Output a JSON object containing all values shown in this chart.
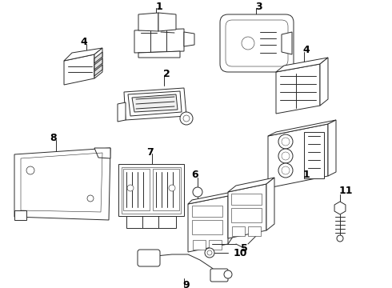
{
  "bg_color": "#ffffff",
  "line_color": "#2a2a2a",
  "figsize": [
    4.9,
    3.6
  ],
  "dpi": 100,
  "lw": 0.7
}
